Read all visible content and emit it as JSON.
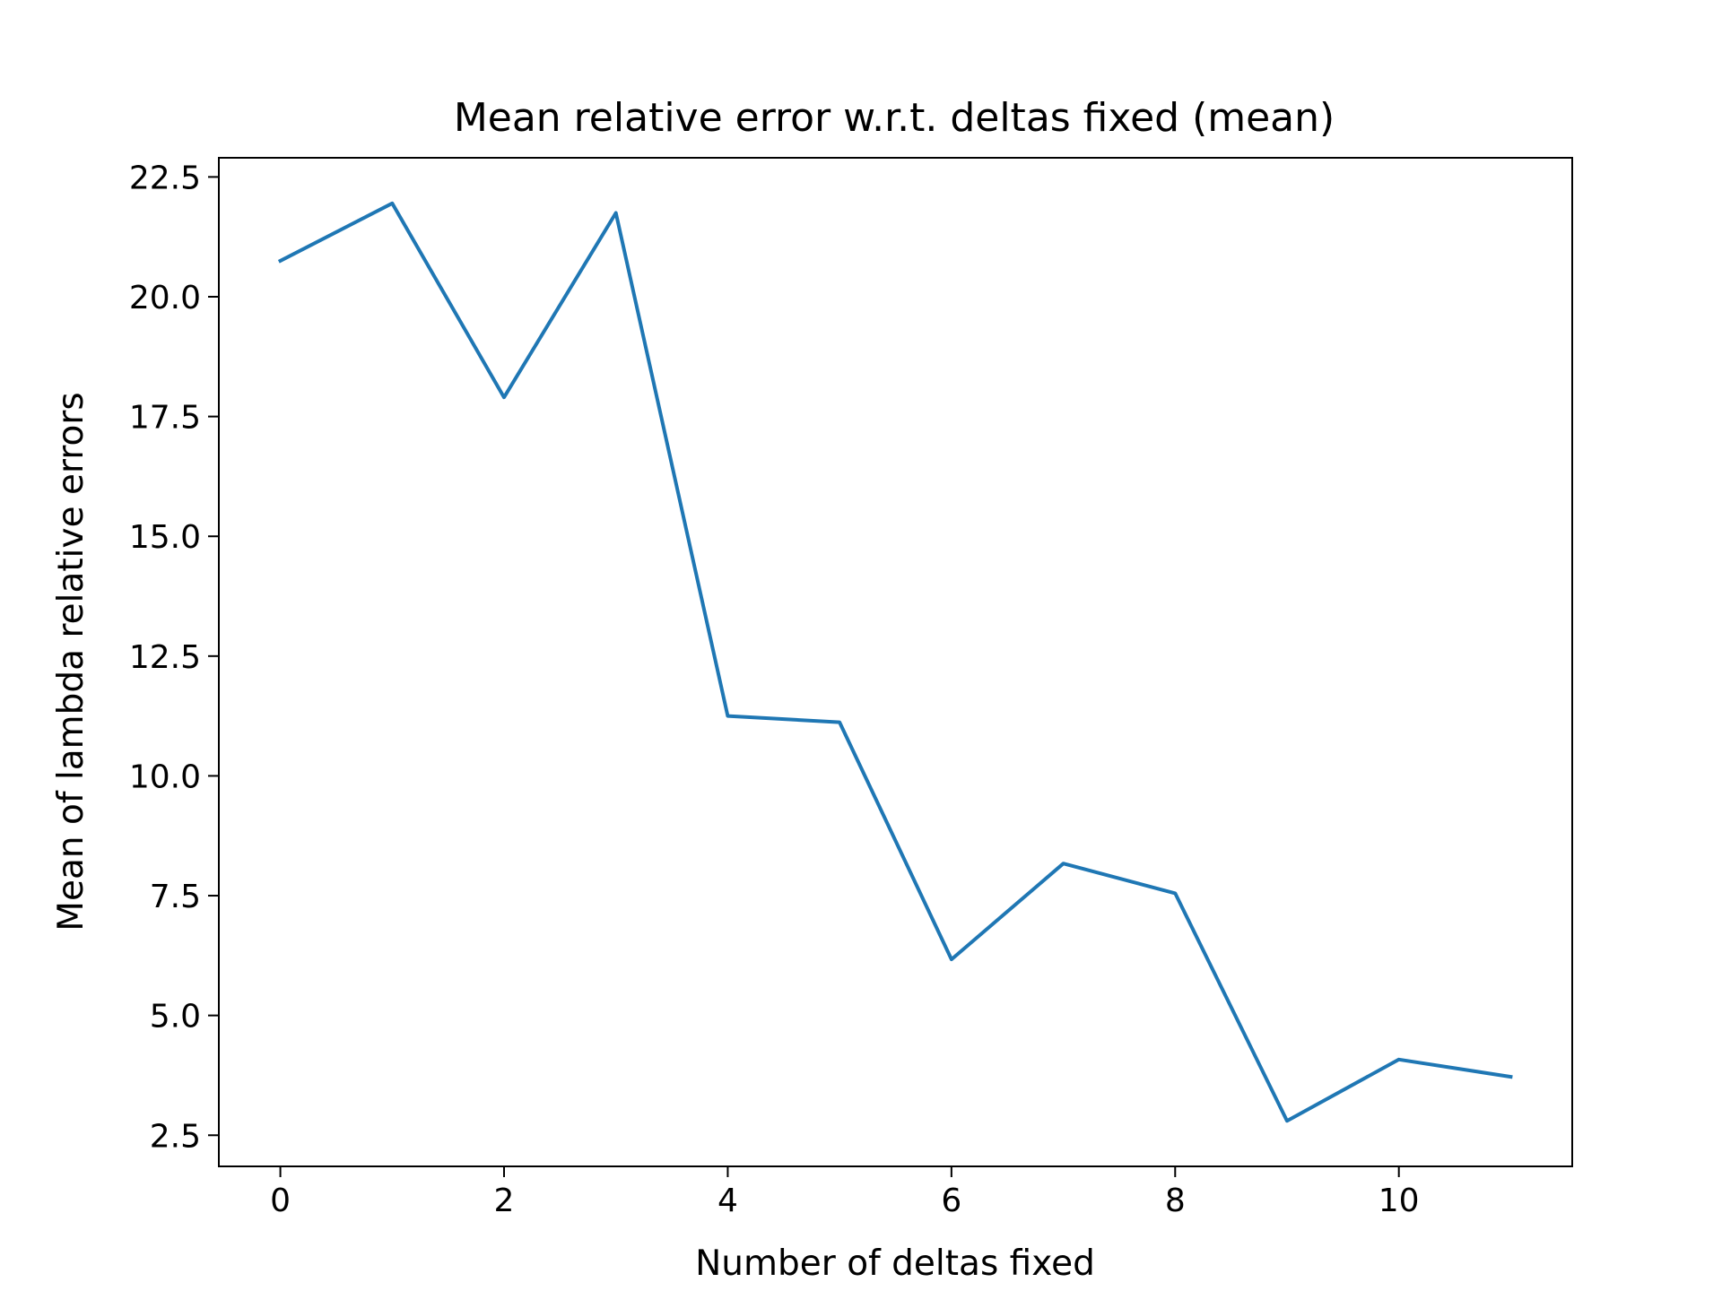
{
  "chart_data": {
    "type": "line",
    "title": "Mean relative error w.r.t. deltas fixed (mean)",
    "xlabel": "Number of deltas fixed",
    "ylabel": "Mean of lambda relative errors",
    "xlim": [
      -0.55,
      11.55
    ],
    "ylim": [
      1.85,
      22.9
    ],
    "xticks": [
      0,
      2,
      4,
      6,
      8,
      10
    ],
    "xtick_labels": [
      "0",
      "2",
      "4",
      "6",
      "8",
      "10"
    ],
    "yticks": [
      2.5,
      5.0,
      7.5,
      10.0,
      12.5,
      15.0,
      17.5,
      20.0,
      22.5
    ],
    "ytick_labels": [
      "2.5",
      "5.0",
      "7.5",
      "10.0",
      "12.5",
      "15.0",
      "17.5",
      "20.0",
      "22.5"
    ],
    "grid": false,
    "series": [
      {
        "color": "#1f77b4",
        "x": [
          0,
          1,
          2,
          3,
          4,
          5,
          6,
          7,
          8,
          9,
          10,
          11
        ],
        "y": [
          20.75,
          21.95,
          17.9,
          21.75,
          11.25,
          11.12,
          6.17,
          8.17,
          7.55,
          2.8,
          4.08,
          3.72
        ]
      }
    ]
  }
}
